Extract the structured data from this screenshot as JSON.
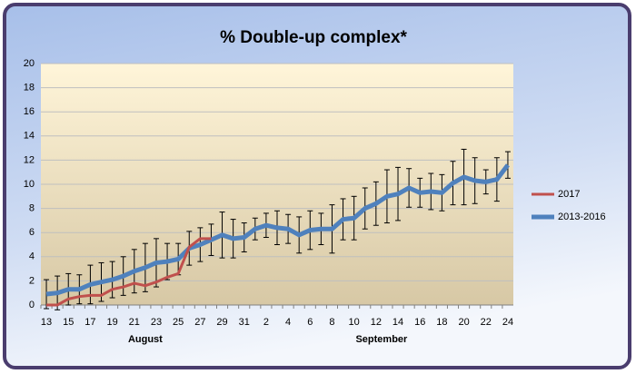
{
  "chart_data": {
    "type": "line",
    "title": "% Double-up complex*",
    "categories": [
      "13",
      null,
      "15",
      null,
      "17",
      null,
      "19",
      null,
      "21",
      null,
      "23",
      null,
      "25",
      null,
      "27",
      null,
      "29",
      null,
      "31",
      null,
      "2",
      null,
      "4",
      null,
      "6",
      null,
      "8",
      null,
      "10",
      null,
      "12",
      null,
      "14",
      null,
      "16",
      null,
      "18",
      null,
      "20",
      null,
      "22",
      null,
      "24"
    ],
    "x_groups": [
      {
        "label": "August",
        "start": 0,
        "end": 18
      },
      {
        "label": "September",
        "start": 19,
        "end": 42
      }
    ],
    "series": [
      {
        "name": "2017",
        "color": "#c0504d",
        "values": [
          0,
          0,
          0.5,
          0.7,
          0.8,
          0.8,
          1.3,
          1.5,
          1.8,
          1.6,
          1.9,
          2.3,
          2.6,
          4.8,
          5.5,
          5.5,
          null,
          null,
          null,
          null,
          null,
          null,
          null,
          null,
          null,
          null,
          null,
          null,
          null,
          null,
          null,
          null,
          null,
          null,
          null,
          null,
          null,
          null,
          null,
          null,
          null,
          null,
          null
        ]
      },
      {
        "name": "2013-2016",
        "color": "#4f81bd",
        "values": [
          0.9,
          1.0,
          1.3,
          1.3,
          1.7,
          1.9,
          2.1,
          2.4,
          2.8,
          3.1,
          3.5,
          3.6,
          3.8,
          4.7,
          5.0,
          5.4,
          5.8,
          5.5,
          5.6,
          6.3,
          6.6,
          6.4,
          6.3,
          5.8,
          6.2,
          6.3,
          6.3,
          7.1,
          7.2,
          8.0,
          8.4,
          9.0,
          9.2,
          9.7,
          9.3,
          9.4,
          9.3,
          10.1,
          10.6,
          10.3,
          10.2,
          10.4,
          11.6
        ],
        "errors": [
          1.2,
          1.4,
          1.3,
          1.2,
          1.6,
          1.6,
          1.5,
          1.6,
          1.8,
          2.0,
          2.0,
          1.5,
          1.3,
          1.4,
          1.4,
          1.3,
          1.9,
          1.6,
          1.2,
          0.9,
          1.0,
          1.4,
          1.2,
          1.5,
          1.6,
          1.3,
          2.0,
          1.7,
          1.8,
          1.7,
          1.8,
          2.2,
          2.2,
          1.6,
          1.2,
          1.5,
          1.5,
          1.8,
          2.3,
          1.9,
          1.0,
          1.8,
          1.1
        ]
      }
    ],
    "ylim": [
      0,
      20
    ],
    "yticks": [
      0,
      2,
      4,
      6,
      8,
      10,
      12,
      14,
      16,
      18,
      20
    ],
    "grid": true,
    "legend": "right"
  }
}
